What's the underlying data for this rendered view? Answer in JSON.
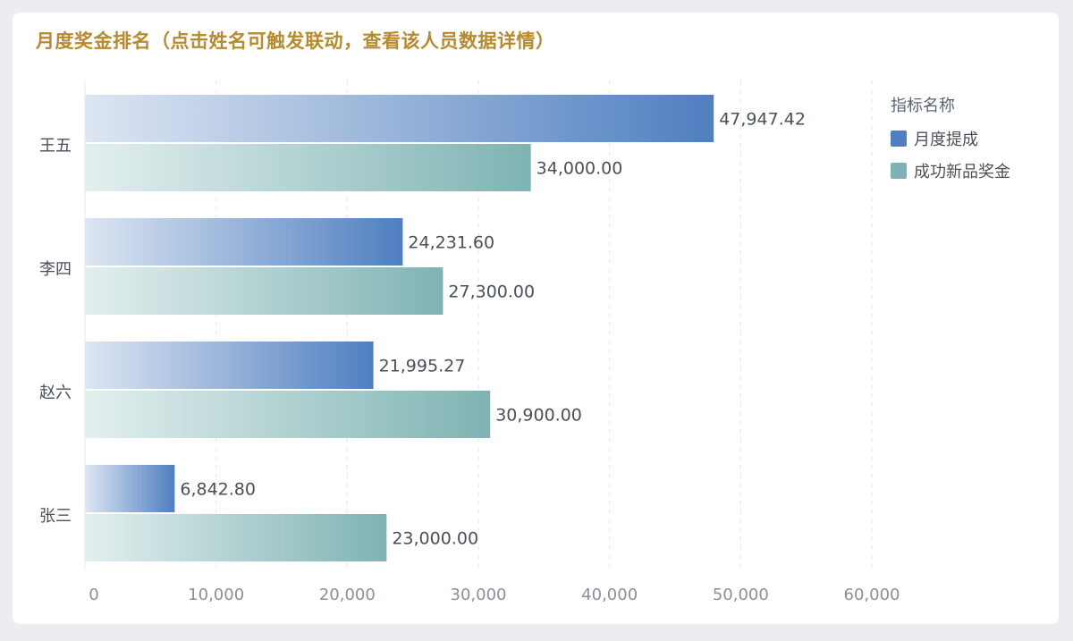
{
  "title": "月度奖金排名（点击姓名可触发联动，查看该人员数据详情）",
  "legend": {
    "title": "指标名称",
    "items": [
      {
        "label": "月度提成",
        "color": "#4f7fc0"
      },
      {
        "label": "成功新品奖金",
        "color": "#7fb3b3"
      }
    ]
  },
  "chart_data": {
    "type": "bar",
    "orientation": "horizontal",
    "categories": [
      "王五",
      "李四",
      "赵六",
      "张三"
    ],
    "series": [
      {
        "name": "月度提成",
        "values": [
          47947.42,
          24231.6,
          21995.27,
          6842.8
        ],
        "labels": [
          "47,947.42",
          "24,231.60",
          "21,995.27",
          "6,842.80"
        ]
      },
      {
        "name": "成功新品奖金",
        "values": [
          34000.0,
          27300.0,
          30900.0,
          23000.0
        ],
        "labels": [
          "34,000.00",
          "27,300.00",
          "30,900.00",
          "23,000.00"
        ]
      }
    ],
    "xlim": [
      0,
      60000
    ],
    "x_ticks": [
      0,
      10000,
      20000,
      30000,
      40000,
      50000,
      60000
    ],
    "x_tick_labels": [
      "0",
      "10,000",
      "20,000",
      "30,000",
      "40,000",
      "50,000",
      "60,000"
    ],
    "grid": "vertical-dashed",
    "legend_position": "top-right"
  }
}
